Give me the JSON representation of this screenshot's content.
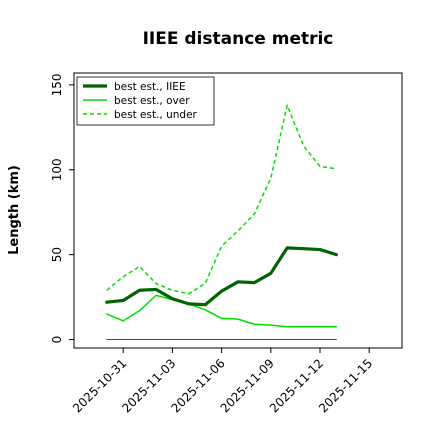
{
  "chart_data": {
    "type": "line",
    "title": "IIEE distance metric",
    "xlabel": "",
    "ylabel": "Length (km)",
    "x": [
      "2025-10-30",
      "2025-10-31",
      "2025-11-01",
      "2025-11-02",
      "2025-11-03",
      "2025-11-04",
      "2025-11-05",
      "2025-11-06",
      "2025-11-07",
      "2025-11-08",
      "2025-11-09",
      "2025-11-10",
      "2025-11-11",
      "2025-11-12",
      "2025-11-13"
    ],
    "xticks": [
      "2025-10-31",
      "2025-11-03",
      "2025-11-06",
      "2025-11-09",
      "2025-11-12",
      "2025-11-15"
    ],
    "yticks": [
      0,
      50,
      100,
      150
    ],
    "xlim": [
      "2025-10-28",
      "2025-11-17"
    ],
    "ylim": [
      -5,
      157
    ],
    "legend_position": "top-left",
    "grid": false,
    "series": [
      {
        "name": "best est., IIEE",
        "color": "#006400",
        "style": "solid-thick",
        "values": [
          22,
          23,
          29,
          29.5,
          24,
          21,
          20.5,
          28.5,
          34,
          33.5,
          39,
          54,
          53.5,
          53,
          50
        ]
      },
      {
        "name": "best est., over",
        "color": "#00dd00",
        "style": "solid",
        "values": [
          15,
          11,
          17,
          26,
          23.5,
          21,
          17.5,
          12.5,
          12,
          9,
          8.5,
          7.5,
          7.5,
          7.5,
          7.5
        ]
      },
      {
        "name": "best est., under",
        "color": "#00dd00",
        "style": "dashed",
        "values": [
          29,
          37,
          43,
          33,
          29,
          27,
          33,
          55,
          64,
          74,
          95,
          138,
          114,
          102,
          100.5
        ]
      },
      {
        "name": "",
        "color": "#444444",
        "style": "solid-thin",
        "values": [
          0,
          0,
          0,
          0,
          0,
          0,
          0,
          0,
          0,
          0,
          0,
          0,
          0,
          0,
          0
        ]
      }
    ]
  }
}
